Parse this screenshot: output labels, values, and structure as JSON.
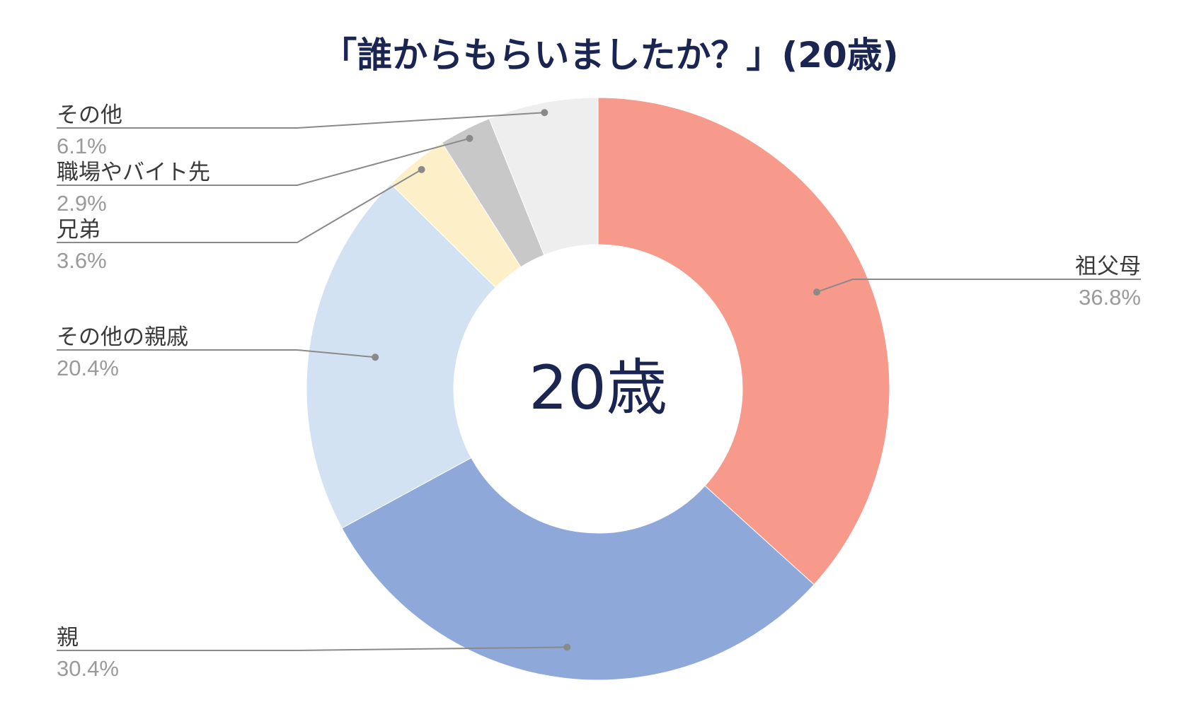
{
  "chart_data": {
    "type": "pie",
    "title": "「誰からもらいましたか？」(20歳)",
    "center_label": "20歳",
    "donut": true,
    "categories": [
      "祖父母",
      "親",
      "その他の親戚",
      "兄弟",
      "職場やバイト先",
      "その他"
    ],
    "values": [
      36.8,
      30.4,
      20.4,
      3.6,
      2.9,
      6.1
    ],
    "value_labels": [
      "36.8%",
      "30.4%",
      "20.4%",
      "3.6%",
      "2.9%",
      "6.1%"
    ],
    "colors": [
      "#f7998b",
      "#8ea8d9",
      "#d3e2f2",
      "#fdf0c8",
      "#c8c8c8",
      "#eeeeee"
    ],
    "legend": "none",
    "grid": false
  },
  "theme": {
    "title_color": "#1b2552",
    "center_color": "#1b2552",
    "label_color": "#3a3a3a",
    "value_color": "#9a9a9a",
    "leader_color": "#8a8a8a"
  }
}
